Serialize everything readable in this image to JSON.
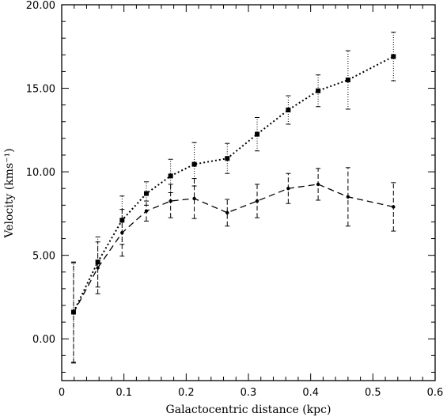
{
  "chart_data": {
    "type": "line",
    "title": "",
    "xlabel": "Galactocentric distance (kpc)",
    "ylabel": "Velocity (kms⁻¹)",
    "xlim": [
      0,
      0.6
    ],
    "ylim": [
      -2.5,
      20.0
    ],
    "x_ticks": [
      0,
      0.1,
      0.2,
      0.3,
      0.4,
      0.5,
      0.6
    ],
    "x_tick_labels": [
      "0",
      "0.1",
      "0.2",
      "0.3",
      "0.4",
      "0.5",
      "0.6"
    ],
    "y_ticks": [
      0,
      5,
      10,
      15,
      20
    ],
    "y_tick_labels": [
      "0.00",
      "5.00",
      "10.00",
      "15.00",
      "20.00"
    ],
    "grid": false,
    "legend": "none",
    "series": [
      {
        "line_style": "dotted",
        "marker": "square",
        "x": [
          0.019,
          0.058,
          0.097,
          0.136,
          0.175,
          0.213,
          0.266,
          0.314,
          0.364,
          0.412,
          0.46,
          0.533
        ],
        "y": [
          1.6,
          4.6,
          7.1,
          8.7,
          9.75,
          10.45,
          10.8,
          12.25,
          13.7,
          14.85,
          15.5,
          16.9
        ],
        "err": [
          3.0,
          1.5,
          1.45,
          0.7,
          1.0,
          1.3,
          0.9,
          1.0,
          0.85,
          0.95,
          1.75,
          1.45
        ]
      },
      {
        "line_style": "dashed",
        "marker": "dot",
        "x": [
          0.019,
          0.058,
          0.097,
          0.136,
          0.175,
          0.213,
          0.266,
          0.314,
          0.364,
          0.412,
          0.46,
          0.533
        ],
        "y": [
          1.55,
          4.25,
          6.35,
          7.65,
          8.25,
          8.4,
          7.55,
          8.25,
          9.0,
          9.25,
          8.5,
          7.9
        ],
        "err": [
          3.0,
          1.55,
          1.4,
          0.6,
          1.0,
          1.2,
          0.8,
          1.0,
          0.9,
          0.95,
          1.75,
          1.45
        ]
      }
    ]
  }
}
